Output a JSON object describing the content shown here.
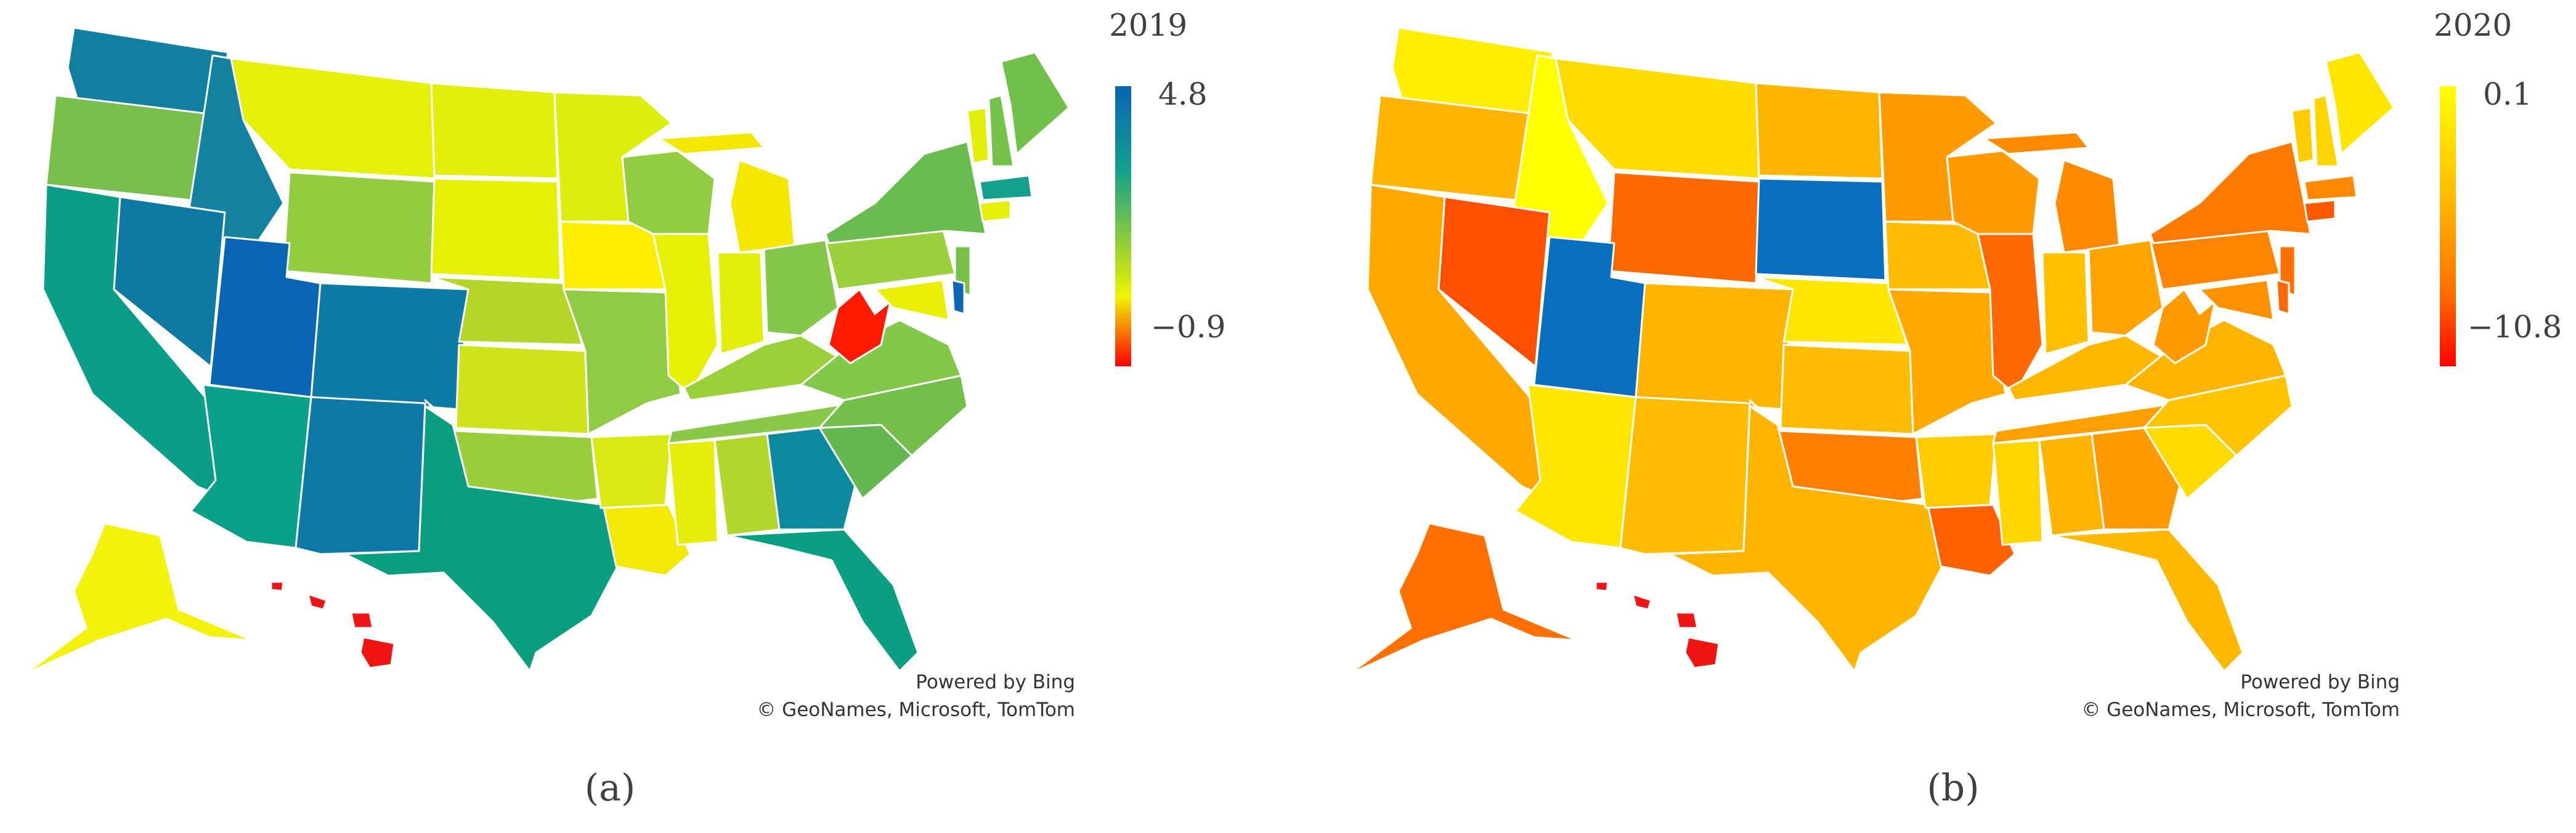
{
  "panels": [
    {
      "id": "a",
      "year": "2019",
      "scale_max": "4.8",
      "scale_min": "−0.9",
      "label": "(a)",
      "attribution": [
        "Powered by Bing",
        "© GeoNames, Microsoft, TomTom"
      ],
      "colors": {
        "high": "#0a64b4",
        "mid2": "#13a08c",
        "mid1": "#8ccc3c",
        "mid0": "#eef500",
        "low": "#ff0000"
      }
    },
    {
      "id": "b",
      "year": "2020",
      "scale_max": "0.1",
      "scale_min": "−10.8",
      "label": "(b)",
      "attribution": [
        "Powered by Bing",
        "© GeoNames, Microsoft, TomTom"
      ],
      "colors": {
        "high": "#ffff00",
        "mid": "#ffb000",
        "low2": "#ff5a00",
        "low": "#ff0000",
        "outlier": "#0a6ebe"
      }
    }
  ]
}
